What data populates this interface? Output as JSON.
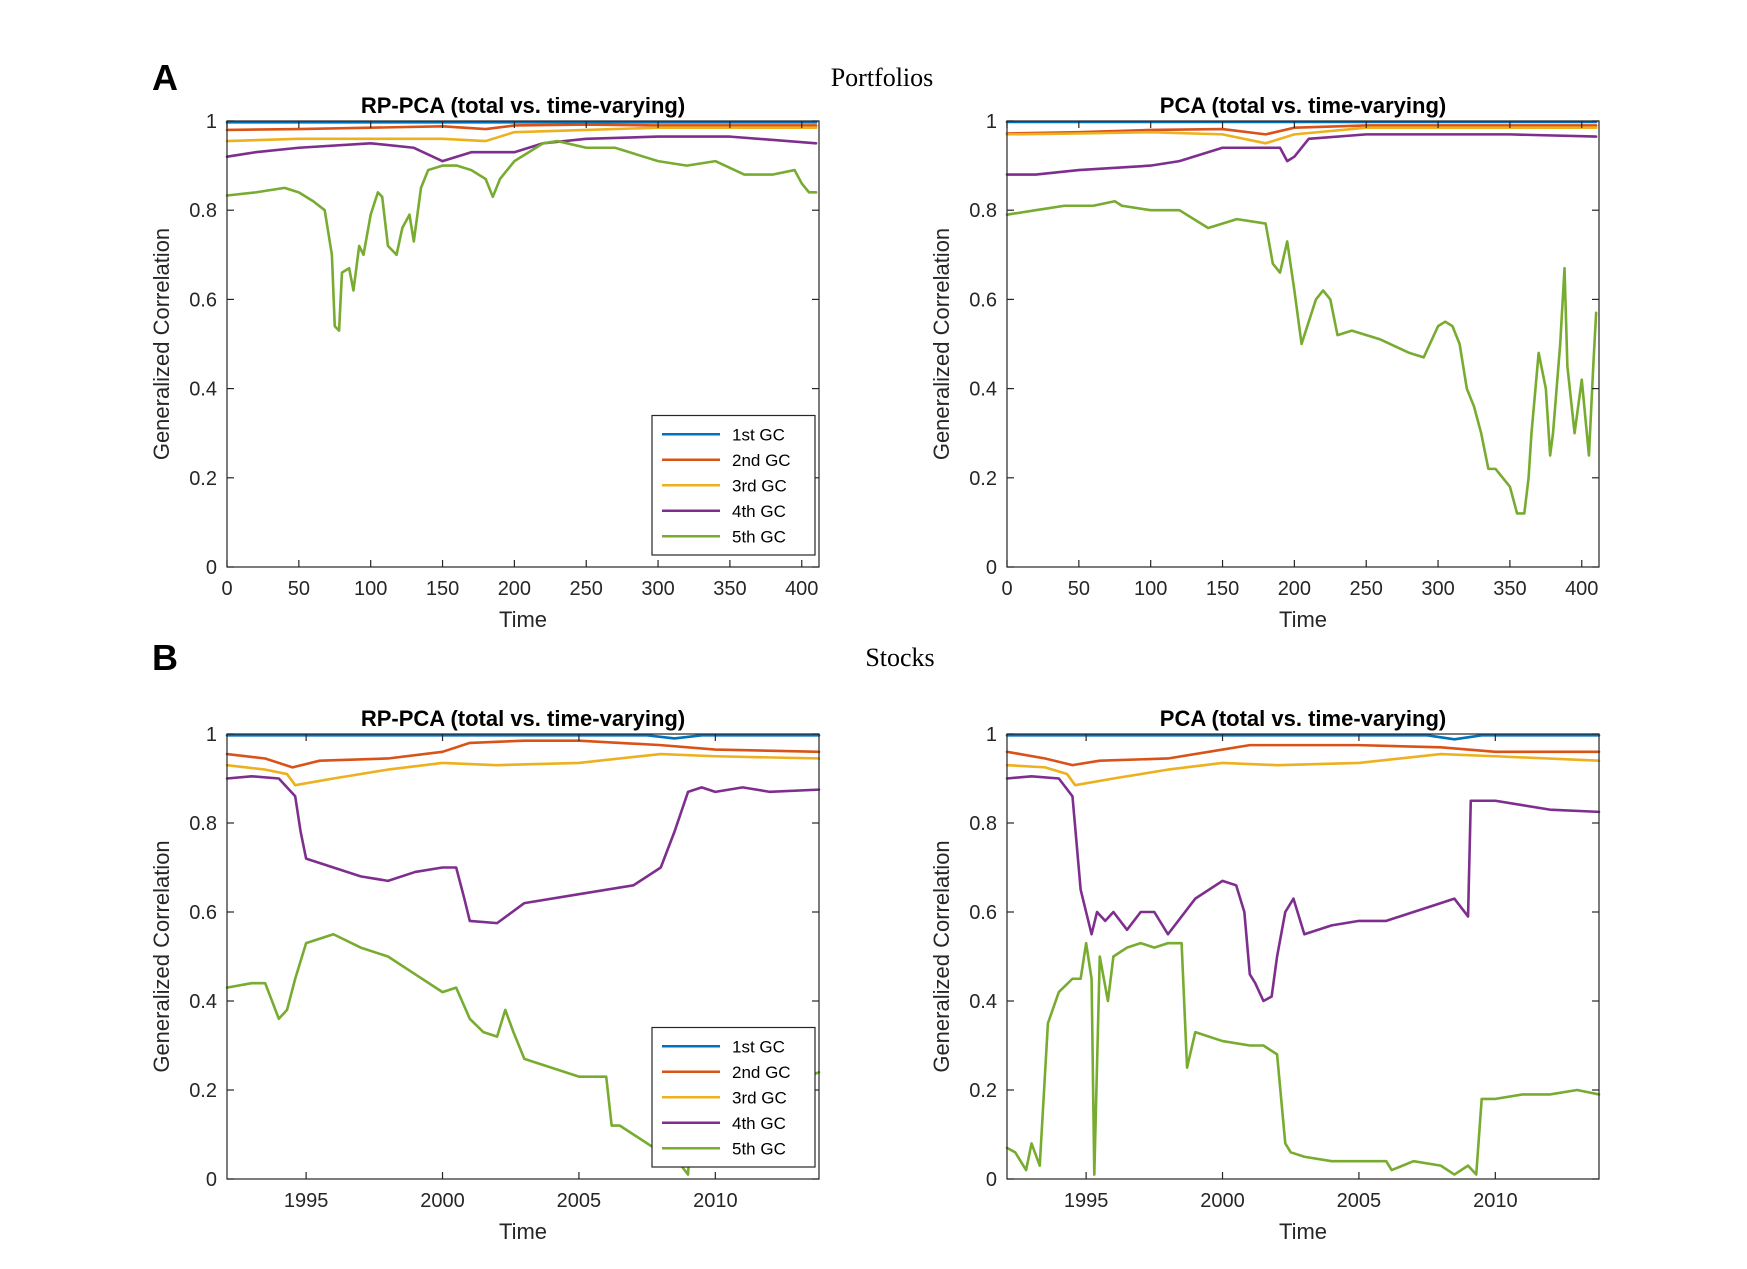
{
  "figure": {
    "panels": [
      {
        "letter": "A",
        "title": "Portfolios"
      },
      {
        "letter": "B",
        "title": "Stocks"
      }
    ]
  },
  "colors": {
    "1st GC": "#0072BD",
    "2nd GC": "#D95319",
    "3rd GC": "#EDB120",
    "4th GC": "#7E2F8E",
    "5th GC": "#77AC30"
  },
  "chart_data": [
    {
      "id": "A-left",
      "type": "line",
      "title": "RP-PCA (total vs. time-varying)",
      "xlabel": "Time",
      "ylabel": "Generalized Correlation",
      "xlim": [
        0,
        412
      ],
      "ylim": [
        0,
        1
      ],
      "xticks": [
        0,
        50,
        100,
        150,
        200,
        250,
        300,
        350,
        400
      ],
      "yticks": [
        0,
        0.2,
        0.4,
        0.6,
        0.8,
        1
      ],
      "yticklabels": [
        "0",
        "0.2",
        "0.4",
        "0.6",
        "0.8",
        "1"
      ],
      "legend": {
        "position": "bottom-right",
        "entries": [
          "1st GC",
          "2nd GC",
          "3rd GC",
          "4th GC",
          "5th GC"
        ]
      },
      "series": [
        {
          "name": "1st GC",
          "x": [
            0,
            100,
            200,
            300,
            410
          ],
          "y": [
            0.997,
            0.997,
            0.997,
            0.997,
            0.997
          ]
        },
        {
          "name": "2nd GC",
          "x": [
            0,
            50,
            100,
            150,
            180,
            200,
            250,
            300,
            350,
            410
          ],
          "y": [
            0.98,
            0.982,
            0.985,
            0.988,
            0.982,
            0.99,
            0.992,
            0.99,
            0.99,
            0.99
          ]
        },
        {
          "name": "3rd GC",
          "x": [
            0,
            50,
            100,
            150,
            180,
            200,
            250,
            300,
            350,
            410
          ],
          "y": [
            0.955,
            0.96,
            0.96,
            0.96,
            0.955,
            0.975,
            0.98,
            0.985,
            0.985,
            0.985
          ]
        },
        {
          "name": "4th GC",
          "x": [
            0,
            20,
            50,
            100,
            130,
            150,
            170,
            200,
            220,
            250,
            300,
            350,
            410
          ],
          "y": [
            0.92,
            0.93,
            0.94,
            0.95,
            0.94,
            0.91,
            0.93,
            0.93,
            0.95,
            0.96,
            0.965,
            0.965,
            0.95
          ]
        },
        {
          "name": "5th GC",
          "x": [
            0,
            20,
            40,
            50,
            60,
            68,
            73,
            75,
            78,
            80,
            85,
            88,
            92,
            95,
            100,
            105,
            108,
            112,
            118,
            122,
            127,
            130,
            135,
            140,
            150,
            160,
            170,
            180,
            185,
            190,
            200,
            210,
            220,
            230,
            250,
            270,
            290,
            300,
            320,
            340,
            360,
            380,
            395,
            400,
            405,
            410
          ],
          "y": [
            0.833,
            0.84,
            0.85,
            0.84,
            0.82,
            0.8,
            0.7,
            0.54,
            0.53,
            0.66,
            0.67,
            0.62,
            0.72,
            0.7,
            0.79,
            0.84,
            0.83,
            0.72,
            0.7,
            0.76,
            0.79,
            0.73,
            0.85,
            0.89,
            0.9,
            0.9,
            0.89,
            0.87,
            0.83,
            0.87,
            0.91,
            0.93,
            0.95,
            0.955,
            0.94,
            0.94,
            0.92,
            0.91,
            0.9,
            0.91,
            0.88,
            0.88,
            0.89,
            0.86,
            0.84,
            0.84
          ]
        }
      ]
    },
    {
      "id": "A-right",
      "type": "line",
      "title": "PCA (total vs. time-varying)",
      "xlabel": "Time",
      "ylabel": "Generalized Correlation",
      "xlim": [
        0,
        412
      ],
      "ylim": [
        0,
        1
      ],
      "xticks": [
        0,
        50,
        100,
        150,
        200,
        250,
        300,
        350,
        400
      ],
      "yticks": [
        0,
        0.2,
        0.4,
        0.6,
        0.8,
        1
      ],
      "yticklabels": [
        "0",
        "0.2",
        "0.4",
        "0.6",
        "0.8",
        "1"
      ],
      "series": [
        {
          "name": "1st GC",
          "x": [
            0,
            100,
            200,
            300,
            410
          ],
          "y": [
            0.998,
            0.998,
            0.998,
            0.998,
            0.998
          ]
        },
        {
          "name": "2nd GC",
          "x": [
            0,
            50,
            100,
            150,
            180,
            200,
            250,
            300,
            350,
            410
          ],
          "y": [
            0.972,
            0.975,
            0.98,
            0.982,
            0.97,
            0.985,
            0.99,
            0.99,
            0.99,
            0.99
          ]
        },
        {
          "name": "3rd GC",
          "x": [
            0,
            50,
            100,
            150,
            180,
            200,
            250,
            300,
            350,
            410
          ],
          "y": [
            0.97,
            0.972,
            0.975,
            0.97,
            0.95,
            0.97,
            0.985,
            0.985,
            0.985,
            0.985
          ]
        },
        {
          "name": "4th GC",
          "x": [
            0,
            20,
            50,
            100,
            120,
            150,
            190,
            195,
            200,
            210,
            250,
            300,
            350,
            410
          ],
          "y": [
            0.88,
            0.88,
            0.89,
            0.9,
            0.91,
            0.94,
            0.94,
            0.91,
            0.92,
            0.96,
            0.97,
            0.97,
            0.97,
            0.965
          ]
        },
        {
          "name": "5th GC",
          "x": [
            0,
            20,
            40,
            60,
            75,
            80,
            100,
            120,
            130,
            140,
            160,
            180,
            185,
            190,
            195,
            200,
            205,
            210,
            215,
            220,
            225,
            230,
            240,
            260,
            280,
            290,
            300,
            305,
            310,
            315,
            320,
            325,
            330,
            335,
            340,
            345,
            350,
            355,
            360,
            363,
            365,
            370,
            375,
            378,
            380,
            385,
            388,
            390,
            395,
            400,
            405,
            408,
            410
          ],
          "y": [
            0.79,
            0.8,
            0.81,
            0.81,
            0.82,
            0.81,
            0.8,
            0.8,
            0.78,
            0.76,
            0.78,
            0.77,
            0.68,
            0.66,
            0.73,
            0.62,
            0.5,
            0.55,
            0.6,
            0.62,
            0.6,
            0.52,
            0.53,
            0.51,
            0.48,
            0.47,
            0.54,
            0.55,
            0.54,
            0.5,
            0.4,
            0.36,
            0.3,
            0.22,
            0.22,
            0.2,
            0.18,
            0.12,
            0.12,
            0.2,
            0.3,
            0.48,
            0.4,
            0.25,
            0.3,
            0.5,
            0.67,
            0.45,
            0.3,
            0.42,
            0.25,
            0.45,
            0.57
          ]
        }
      ]
    },
    {
      "id": "B-left",
      "type": "line",
      "title": "RP-PCA (total vs. time-varying)",
      "xlabel": "Time",
      "ylabel": "Generalized Correlation",
      "xlim": [
        1992.1,
        2013.8
      ],
      "ylim": [
        0,
        1
      ],
      "xticks": [
        1995,
        2000,
        2005,
        2010
      ],
      "yticks": [
        0,
        0.2,
        0.4,
        0.6,
        0.8,
        1
      ],
      "yticklabels": [
        "0",
        "0.2",
        "0.4",
        "0.6",
        "0.8",
        "1"
      ],
      "legend": {
        "position": "bottom-right",
        "entries": [
          "1st GC",
          "2nd GC",
          "3rd GC",
          "4th GC",
          "5th GC"
        ]
      },
      "series": [
        {
          "name": "1st GC",
          "x": [
            1992.1,
            2000,
            2005,
            2007.5,
            2008.5,
            2009.5,
            2013.8
          ],
          "y": [
            0.997,
            0.997,
            0.997,
            0.997,
            0.99,
            0.997,
            0.997
          ]
        },
        {
          "name": "2nd GC",
          "x": [
            1992.1,
            1993.5,
            1994.5,
            1995.5,
            1998,
            2000,
            2001,
            2003,
            2005,
            2008,
            2010,
            2013.8
          ],
          "y": [
            0.955,
            0.945,
            0.925,
            0.94,
            0.945,
            0.96,
            0.98,
            0.985,
            0.985,
            0.975,
            0.965,
            0.96
          ]
        },
        {
          "name": "3rd GC",
          "x": [
            1992.1,
            1993.5,
            1994.3,
            1994.6,
            1996,
            1998,
            2000,
            2002,
            2005,
            2008,
            2010,
            2013.8
          ],
          "y": [
            0.93,
            0.92,
            0.91,
            0.885,
            0.9,
            0.92,
            0.935,
            0.93,
            0.935,
            0.955,
            0.95,
            0.945
          ]
        },
        {
          "name": "4th GC",
          "x": [
            1992.1,
            1993,
            1994,
            1994.6,
            1994.8,
            1995,
            1996,
            1997,
            1998,
            1999,
            2000,
            2000.5,
            2000.8,
            2001,
            2002,
            2003,
            2005,
            2007,
            2008,
            2008.5,
            2009,
            2009.5,
            2010,
            2011,
            2012,
            2013.8
          ],
          "y": [
            0.9,
            0.905,
            0.9,
            0.86,
            0.78,
            0.72,
            0.7,
            0.68,
            0.67,
            0.69,
            0.7,
            0.7,
            0.63,
            0.58,
            0.575,
            0.62,
            0.64,
            0.66,
            0.7,
            0.78,
            0.87,
            0.88,
            0.87,
            0.88,
            0.87,
            0.875
          ]
        },
        {
          "name": "5th GC",
          "x": [
            1992.1,
            1993,
            1993.5,
            1994,
            1994.3,
            1994.6,
            1995,
            1996,
            1997,
            1998,
            1999,
            2000,
            2000.5,
            2001,
            2001.5,
            2002,
            2002.3,
            2002.6,
            2003,
            2004,
            2005,
            2006,
            2006.2,
            2006.5,
            2007,
            2008,
            2008.5,
            2009,
            2009.2,
            2010,
            2011,
            2012,
            2013,
            2013.8
          ],
          "y": [
            0.43,
            0.44,
            0.44,
            0.36,
            0.38,
            0.45,
            0.53,
            0.55,
            0.52,
            0.5,
            0.46,
            0.42,
            0.43,
            0.36,
            0.33,
            0.32,
            0.38,
            0.33,
            0.27,
            0.25,
            0.23,
            0.23,
            0.12,
            0.12,
            0.1,
            0.06,
            0.05,
            0.01,
            0.22,
            0.22,
            0.22,
            0.22,
            0.22,
            0.24
          ]
        }
      ]
    },
    {
      "id": "B-right",
      "type": "line",
      "title": "PCA (total vs. time-varying)",
      "xlabel": "Time",
      "ylabel": "Generalized Correlation",
      "xlim": [
        1992.1,
        2013.8
      ],
      "ylim": [
        0,
        1
      ],
      "xticks": [
        1995,
        2000,
        2005,
        2010
      ],
      "yticks": [
        0,
        0.2,
        0.4,
        0.6,
        0.8,
        1
      ],
      "yticklabels": [
        "0",
        "0.2",
        "0.4",
        "0.6",
        "0.8",
        "1"
      ],
      "series": [
        {
          "name": "1st GC",
          "x": [
            1992.1,
            2000,
            2005,
            2007.5,
            2008.5,
            2009.5,
            2013.8
          ],
          "y": [
            0.997,
            0.997,
            0.997,
            0.997,
            0.988,
            0.997,
            0.997
          ]
        },
        {
          "name": "2nd GC",
          "x": [
            1992.1,
            1993.5,
            1994.5,
            1995.5,
            1998,
            2000,
            2001,
            2003,
            2005,
            2008,
            2010,
            2013.8
          ],
          "y": [
            0.96,
            0.945,
            0.93,
            0.94,
            0.945,
            0.965,
            0.975,
            0.975,
            0.975,
            0.97,
            0.96,
            0.96
          ]
        },
        {
          "name": "3rd GC",
          "x": [
            1992.1,
            1993.5,
            1994.3,
            1994.6,
            1996,
            1998,
            2000,
            2002,
            2005,
            2008,
            2010,
            2013.8
          ],
          "y": [
            0.93,
            0.925,
            0.91,
            0.885,
            0.9,
            0.92,
            0.935,
            0.93,
            0.935,
            0.955,
            0.95,
            0.94
          ]
        },
        {
          "name": "4th GC",
          "x": [
            1992.1,
            1993,
            1994,
            1994.5,
            1994.8,
            1995.2,
            1995.4,
            1995.7,
            1996,
            1996.5,
            1997,
            1997.5,
            1998,
            1999,
            2000,
            2000.5,
            2000.8,
            2001,
            2001.2,
            2001.5,
            2001.8,
            2002,
            2002.3,
            2002.6,
            2003,
            2004,
            2005,
            2006,
            2007,
            2008,
            2008.5,
            2009,
            2009.1,
            2010,
            2011,
            2012,
            2013.8
          ],
          "y": [
            0.9,
            0.905,
            0.9,
            0.86,
            0.65,
            0.55,
            0.6,
            0.58,
            0.6,
            0.56,
            0.6,
            0.6,
            0.55,
            0.63,
            0.67,
            0.66,
            0.6,
            0.46,
            0.44,
            0.4,
            0.41,
            0.5,
            0.6,
            0.63,
            0.55,
            0.57,
            0.58,
            0.58,
            0.6,
            0.62,
            0.63,
            0.59,
            0.85,
            0.85,
            0.84,
            0.83,
            0.825
          ]
        },
        {
          "name": "5th GC",
          "x": [
            1992.1,
            1992.4,
            1992.8,
            1993,
            1993.3,
            1993.6,
            1994,
            1994.5,
            1994.8,
            1995,
            1995.2,
            1995.3,
            1995.5,
            1995.8,
            1996,
            1996.5,
            1997,
            1997.5,
            1998,
            1998.5,
            1998.7,
            1999,
            2000,
            2001,
            2001.5,
            2002,
            2002.3,
            2002.5,
            2003,
            2004,
            2005,
            2006,
            2006.2,
            2007,
            2008,
            2008.5,
            2009,
            2009.3,
            2009.5,
            2010,
            2011,
            2012,
            2013,
            2013.8
          ],
          "y": [
            0.07,
            0.06,
            0.02,
            0.08,
            0.03,
            0.35,
            0.42,
            0.45,
            0.45,
            0.53,
            0.45,
            0.01,
            0.5,
            0.4,
            0.5,
            0.52,
            0.53,
            0.52,
            0.53,
            0.53,
            0.25,
            0.33,
            0.31,
            0.3,
            0.3,
            0.28,
            0.08,
            0.06,
            0.05,
            0.04,
            0.04,
            0.04,
            0.02,
            0.04,
            0.03,
            0.01,
            0.03,
            0.01,
            0.18,
            0.18,
            0.19,
            0.19,
            0.2,
            0.19
          ]
        }
      ]
    }
  ]
}
